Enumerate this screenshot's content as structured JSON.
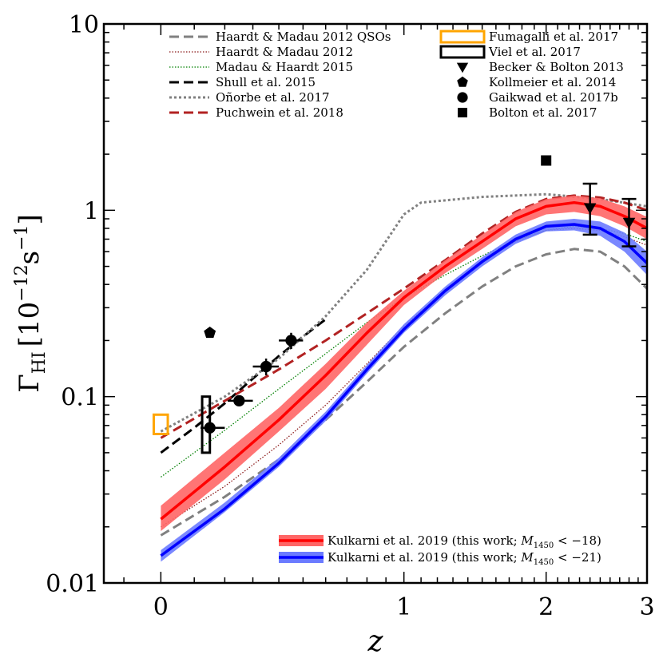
{
  "chart_data": {
    "type": "line",
    "xscale": "log(1+z)",
    "yscale": "log",
    "xlim": [
      -0.15,
      3.0
    ],
    "ylim": [
      0.01,
      10
    ],
    "xlabel": "z",
    "ylabel": "Γ_HI [10^-12 s^-1]",
    "ylabel_parts": {
      "gamma": "Γ",
      "sub": "HI",
      "open": "[10",
      "exp": "−12",
      "unit": "s",
      "unit_exp": "−1",
      "close": "]"
    },
    "x_ticks": [
      {
        "value": 0,
        "label": "0"
      },
      {
        "value": 1,
        "label": "1"
      },
      {
        "value": 2,
        "label": "2"
      },
      {
        "value": 3,
        "label": "3"
      }
    ],
    "y_ticks": [
      {
        "value": 0.01,
        "label": "0.01"
      },
      {
        "value": 0.1,
        "label": "0.1"
      },
      {
        "value": 1,
        "label": "1"
      },
      {
        "value": 10,
        "label": "10"
      }
    ],
    "series": [
      {
        "name": "Haardt & Madau 2012 QSOs",
        "style": "dashed",
        "color": "#808080",
        "x": [
          0,
          0.2,
          0.4,
          0.6,
          0.8,
          1.0,
          1.25,
          1.5,
          1.75,
          2.0,
          2.25,
          2.5,
          2.75,
          3.0
        ],
        "y": [
          0.018,
          0.029,
          0.046,
          0.075,
          0.12,
          0.185,
          0.28,
          0.39,
          0.5,
          0.58,
          0.62,
          0.6,
          0.5,
          0.38
        ]
      },
      {
        "name": "Haardt & Madau 2012",
        "style": "dotted",
        "color": "#8b1a1a",
        "x": [
          0,
          0.2,
          0.4,
          0.6,
          0.8,
          1.0,
          1.25,
          1.5,
          1.75,
          2.0,
          2.25,
          2.5,
          2.75,
          3.0
        ],
        "y": [
          0.02,
          0.033,
          0.055,
          0.09,
          0.15,
          0.24,
          0.37,
          0.53,
          0.68,
          0.78,
          0.8,
          0.78,
          0.72,
          0.65
        ]
      },
      {
        "name": "Madau & Haardt 2015",
        "style": "dotted",
        "color": "#008000",
        "x": [
          0,
          0.2,
          0.4,
          0.6,
          0.8,
          1.0,
          1.25,
          1.5,
          1.75,
          2.0,
          2.25,
          2.5,
          2.75,
          3.0
        ],
        "y": [
          0.037,
          0.066,
          0.11,
          0.17,
          0.25,
          0.34,
          0.45,
          0.57,
          0.69,
          0.78,
          0.82,
          0.8,
          0.75,
          0.68
        ]
      },
      {
        "name": "Shull et al. 2015",
        "style": "dashed",
        "color": "#000000",
        "x": [
          0,
          0.1,
          0.2,
          0.3,
          0.4,
          0.5,
          0.6
        ],
        "y": [
          0.05,
          0.068,
          0.092,
          0.125,
          0.165,
          0.21,
          0.26
        ]
      },
      {
        "name": "Oñorbe et al. 2017",
        "style": "dotted",
        "color": "#808080",
        "x": [
          0,
          0.2,
          0.4,
          0.6,
          0.8,
          1.0,
          1.1,
          1.5,
          2.0,
          2.5,
          3.0
        ],
        "y": [
          0.065,
          0.1,
          0.16,
          0.27,
          0.48,
          0.95,
          1.1,
          1.18,
          1.22,
          1.15,
          1.05
        ]
      },
      {
        "name": "Puchwein et al. 2018",
        "style": "dashed",
        "color": "#b22222",
        "x": [
          0,
          0.2,
          0.4,
          0.6,
          0.8,
          1.0,
          1.25,
          1.5,
          1.75,
          2.0,
          2.25,
          2.5,
          2.75,
          3.0
        ],
        "y": [
          0.06,
          0.095,
          0.14,
          0.2,
          0.28,
          0.38,
          0.54,
          0.75,
          0.98,
          1.15,
          1.2,
          1.17,
          1.1,
          1.0
        ]
      },
      {
        "name": "Kulkarni et al. 2019 (this work; M1450 < −18)",
        "style": "solid",
        "color": "#ff0000",
        "band_color": "#ff6666",
        "x": [
          0,
          0.2,
          0.4,
          0.6,
          0.8,
          1.0,
          1.25,
          1.5,
          1.75,
          2.0,
          2.25,
          2.5,
          2.75,
          3.0
        ],
        "y": [
          0.022,
          0.042,
          0.075,
          0.13,
          0.22,
          0.34,
          0.5,
          0.68,
          0.9,
          1.05,
          1.1,
          1.05,
          0.93,
          0.8
        ],
        "y_lo": [
          0.019,
          0.036,
          0.065,
          0.11,
          0.19,
          0.31,
          0.46,
          0.62,
          0.82,
          0.95,
          0.98,
          0.93,
          0.82,
          0.7
        ],
        "y_hi": [
          0.026,
          0.05,
          0.087,
          0.15,
          0.25,
          0.37,
          0.54,
          0.74,
          0.98,
          1.15,
          1.2,
          1.16,
          1.05,
          0.92
        ]
      },
      {
        "name": "Kulkarni et al. 2019 (this work; M1450 < −21)",
        "style": "solid",
        "color": "#0000ff",
        "band_color": "#6b7bff",
        "x": [
          0,
          0.2,
          0.4,
          0.6,
          0.8,
          1.0,
          1.25,
          1.5,
          1.75,
          2.0,
          2.25,
          2.5,
          2.75,
          3.0
        ],
        "y": [
          0.014,
          0.025,
          0.044,
          0.078,
          0.14,
          0.23,
          0.37,
          0.53,
          0.7,
          0.82,
          0.84,
          0.8,
          0.68,
          0.52
        ],
        "y_lo": [
          0.013,
          0.024,
          0.042,
          0.074,
          0.133,
          0.22,
          0.35,
          0.5,
          0.66,
          0.77,
          0.78,
          0.73,
          0.6,
          0.45
        ],
        "y_hi": [
          0.015,
          0.027,
          0.047,
          0.083,
          0.148,
          0.245,
          0.39,
          0.56,
          0.74,
          0.87,
          0.9,
          0.87,
          0.76,
          0.6
        ]
      }
    ],
    "boxes": [
      {
        "name": "Fumagalli et al. 2017",
        "color": "#ffa500",
        "x0": -0.02,
        "x1": 0.02,
        "y0": 0.063,
        "y1": 0.08
      },
      {
        "name": "Viel et al. 2017",
        "color": "#000000",
        "x0": 0.125,
        "x1": 0.15,
        "y0": 0.05,
        "y1": 0.1
      }
    ],
    "points": [
      {
        "name": "Becker & Bolton 2013",
        "marker": "triangle-down",
        "data": [
          {
            "x": 2.4,
            "y": 1.03,
            "ylo": 0.74,
            "yhi": 1.39,
            "xlo": 2.4,
            "xhi": 2.4
          },
          {
            "x": 2.8,
            "y": 0.86,
            "ylo": 0.64,
            "yhi": 1.15,
            "xlo": 2.8,
            "xhi": 2.8
          }
        ]
      },
      {
        "name": "Kollmeier et al. 2014",
        "marker": "pentagon",
        "data": [
          {
            "x": 0.15,
            "y": 0.22
          }
        ]
      },
      {
        "name": "Gaikwad et al. 2017b",
        "marker": "circle",
        "data": [
          {
            "x": 0.15,
            "y": 0.068,
            "xlo": 0.12,
            "xhi": 0.2
          },
          {
            "x": 0.25,
            "y": 0.095,
            "xlo": 0.21,
            "xhi": 0.3
          },
          {
            "x": 0.35,
            "y": 0.145,
            "xlo": 0.3,
            "xhi": 0.4,
            "ylo": 0.13,
            "yhi": 0.16
          },
          {
            "x": 0.45,
            "y": 0.2,
            "xlo": 0.4,
            "xhi": 0.5,
            "ylo": 0.18,
            "yhi": 0.22
          }
        ]
      },
      {
        "name": "Bolton et al. 2017",
        "marker": "square",
        "data": [
          {
            "x": 2.0,
            "y": 1.85
          }
        ]
      }
    ],
    "legend_top_left": [
      {
        "label": "Haardt & Madau 2012 QSOs",
        "series": 0
      },
      {
        "label": "Haardt & Madau 2012",
        "series": 1
      },
      {
        "label": "Madau & Haardt 2015",
        "series": 2
      },
      {
        "label": "Shull et al. 2015",
        "series": 3
      },
      {
        "label": "Oñorbe et al. 2017",
        "series": 4
      },
      {
        "label": "Puchwein et al. 2018",
        "series": 5
      }
    ],
    "legend_top_right": [
      {
        "label": "Fumagalli et al. 2017",
        "kind": "box",
        "color": "#ffa500"
      },
      {
        "label": "Viel et al. 2017",
        "kind": "box",
        "color": "#000000"
      },
      {
        "label": "Becker & Bolton 2013",
        "kind": "triangle-down"
      },
      {
        "label": "Kollmeier et al. 2014",
        "kind": "pentagon"
      },
      {
        "label": "Gaikwad et al. 2017b",
        "kind": "circle"
      },
      {
        "label": "Bolton et al. 2017",
        "kind": "square"
      }
    ],
    "legend_bottom": [
      {
        "label_prefix": "Kulkarni et al. 2019 (this work; ",
        "label_var": "M",
        "label_sub": "1450",
        "label_rest": " < −18)",
        "series": 6
      },
      {
        "label_prefix": "Kulkarni et al. 2019 (this work; ",
        "label_var": "M",
        "label_sub": "1450",
        "label_rest": " < −21)",
        "series": 7
      }
    ]
  }
}
